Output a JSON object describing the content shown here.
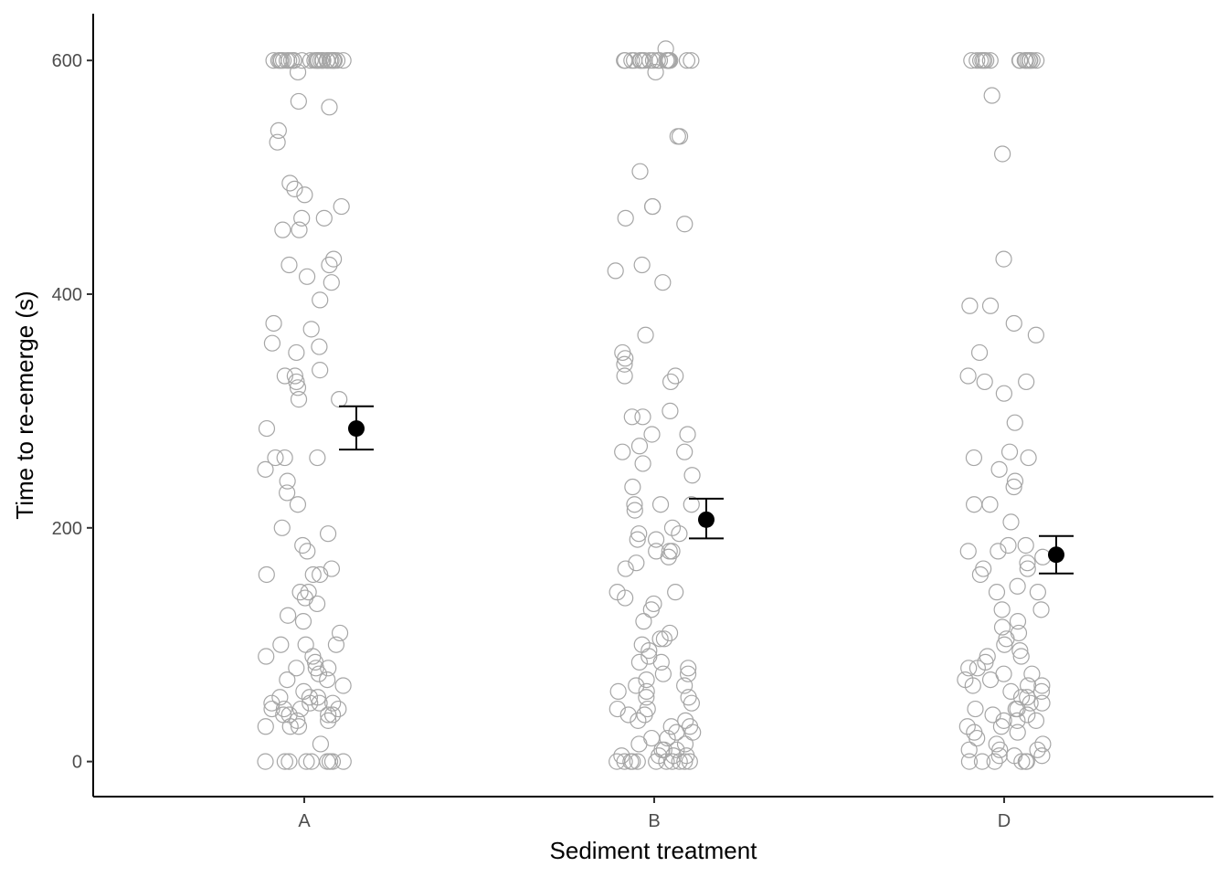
{
  "chart_data": {
    "type": "scatter",
    "xlabel": "Sediment treatment",
    "ylabel": "Time to re-emerge (s)",
    "categories": [
      "A",
      "B",
      "D"
    ],
    "yticks": [
      0,
      200,
      400,
      600
    ],
    "ylim": [
      -30,
      640
    ],
    "grid": false,
    "raw_point_color": "#a6a6a6",
    "mean_color": "#000000",
    "means": [
      {
        "category": "A",
        "mean": 285,
        "lower": 267,
        "upper": 304
      },
      {
        "category": "B",
        "mean": 207,
        "lower": 191,
        "upper": 225
      },
      {
        "category": "D",
        "mean": 177,
        "lower": 161,
        "upper": 193
      }
    ],
    "raw_points": [
      {
        "category": "A",
        "values": [
          600,
          600,
          600,
          600,
          600,
          600,
          600,
          600,
          600,
          600,
          600,
          600,
          600,
          600,
          600,
          600,
          600,
          600,
          600,
          600,
          600,
          600,
          600,
          600,
          600,
          600,
          600,
          600,
          590,
          565,
          560,
          540,
          530,
          495,
          490,
          485,
          475,
          465,
          465,
          455,
          455,
          430,
          425,
          425,
          415,
          410,
          395,
          375,
          370,
          358,
          355,
          350,
          335,
          330,
          330,
          325,
          320,
          310,
          310,
          285,
          260,
          260,
          260,
          250,
          240,
          230,
          220,
          200,
          195,
          185,
          180,
          165,
          160,
          160,
          160,
          145,
          145,
          140,
          135,
          125,
          120,
          110,
          100,
          100,
          100,
          90,
          90,
          85,
          80,
          80,
          80,
          75,
          70,
          70,
          65,
          60,
          55,
          55,
          55,
          50,
          50,
          50,
          50,
          45,
          45,
          45,
          45,
          40,
          40,
          40,
          40,
          35,
          35,
          30,
          30,
          30,
          15,
          0,
          0,
          0,
          0,
          0,
          0,
          0,
          0,
          0
        ]
      },
      {
        "category": "B",
        "values": [
          610,
          600,
          600,
          600,
          600,
          600,
          600,
          600,
          600,
          600,
          600,
          600,
          600,
          600,
          600,
          600,
          600,
          600,
          600,
          600,
          600,
          600,
          590,
          535,
          535,
          505,
          475,
          475,
          465,
          460,
          425,
          420,
          410,
          365,
          350,
          345,
          340,
          330,
          330,
          325,
          300,
          295,
          295,
          280,
          280,
          270,
          265,
          265,
          255,
          245,
          235,
          220,
          220,
          220,
          215,
          200,
          195,
          195,
          190,
          190,
          180,
          180,
          180,
          175,
          170,
          165,
          145,
          145,
          140,
          135,
          130,
          120,
          110,
          105,
          105,
          100,
          95,
          90,
          85,
          85,
          80,
          75,
          75,
          70,
          65,
          65,
          60,
          60,
          55,
          55,
          50,
          45,
          45,
          40,
          40,
          35,
          35,
          30,
          30,
          25,
          25,
          20,
          20,
          15,
          15,
          10,
          10,
          10,
          5,
          5,
          5,
          5,
          0,
          0,
          0,
          0,
          0,
          0,
          0,
          0,
          0,
          0,
          0
        ]
      },
      {
        "category": "D",
        "values": [
          600,
          600,
          600,
          600,
          600,
          600,
          600,
          600,
          600,
          600,
          600,
          600,
          600,
          600,
          600,
          600,
          570,
          520,
          430,
          390,
          390,
          375,
          365,
          350,
          330,
          325,
          325,
          315,
          290,
          265,
          260,
          260,
          250,
          240,
          235,
          220,
          220,
          205,
          185,
          185,
          180,
          180,
          175,
          170,
          165,
          165,
          160,
          150,
          145,
          145,
          130,
          130,
          120,
          115,
          110,
          105,
          100,
          95,
          90,
          90,
          85,
          80,
          80,
          75,
          75,
          70,
          70,
          65,
          65,
          65,
          60,
          60,
          55,
          55,
          50,
          50,
          45,
          45,
          45,
          40,
          40,
          35,
          35,
          35,
          30,
          30,
          25,
          25,
          20,
          15,
          15,
          10,
          10,
          10,
          5,
          5,
          5,
          0,
          0,
          0,
          0,
          0,
          0
        ]
      }
    ]
  }
}
